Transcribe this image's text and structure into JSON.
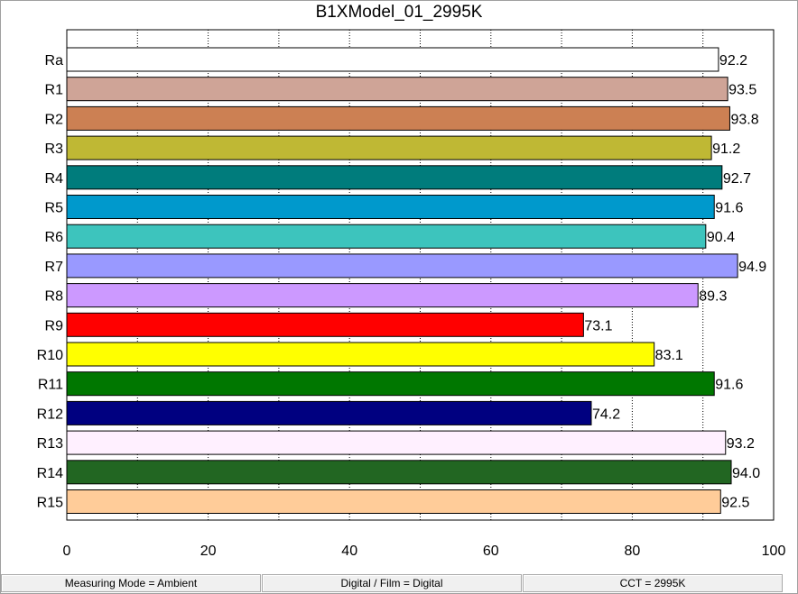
{
  "chart_data": {
    "type": "bar",
    "orientation": "horizontal",
    "title": "B1XModel_01_2995K",
    "xlabel": "",
    "ylabel": "",
    "xlim": [
      0,
      100
    ],
    "x_ticks": [
      "0",
      "20",
      "40",
      "60",
      "80",
      "100"
    ],
    "grid": "vertical dotted",
    "categories": [
      "Ra",
      "R1",
      "R2",
      "R3",
      "R4",
      "R5",
      "R6",
      "R7",
      "R8",
      "R9",
      "R10",
      "R11",
      "R12",
      "R13",
      "R14",
      "R15"
    ],
    "values": [
      92.2,
      93.5,
      93.8,
      91.2,
      92.7,
      91.6,
      90.4,
      94.9,
      89.3,
      73.1,
      83.1,
      91.6,
      74.2,
      93.2,
      94.0,
      92.5
    ],
    "value_labels": [
      "92.2",
      "93.5",
      "93.8",
      "91.2",
      "92.7",
      "91.6",
      "90.4",
      "94.9",
      "89.3",
      "73.1",
      "83.1",
      "91.6",
      "74.2",
      "93.2",
      "94.0",
      "92.5"
    ],
    "colors": [
      "#ffffff",
      "#cfa497",
      "#cc8053",
      "#bfb834",
      "#007c7c",
      "#0099cc",
      "#3dc4bd",
      "#9999ff",
      "#cc99ff",
      "#ff0000",
      "#ffff00",
      "#007700",
      "#000080",
      "#fff0ff",
      "#226622",
      "#ffcc99"
    ]
  },
  "statusbar": {
    "measuring_mode": "Measuring Mode = Ambient",
    "digital_film": "Digital / Film = Digital",
    "cct": "CCT = 2995K"
  }
}
